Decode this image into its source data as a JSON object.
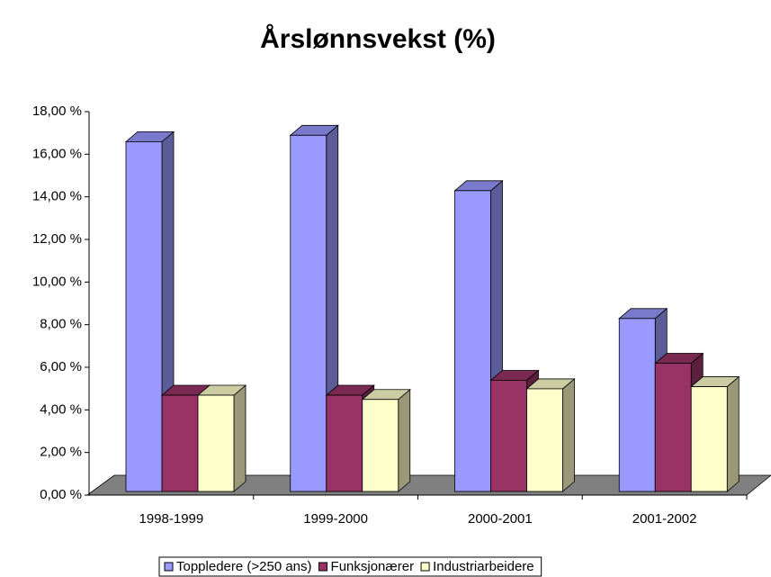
{
  "chart_data": {
    "type": "bar3d",
    "title": "Årslønnsvekst (%)",
    "categories": [
      "1998-1999",
      "1999-2000",
      "2000-2001",
      "2001-2002"
    ],
    "series": [
      {
        "name": "Toppledere (>250 ans)",
        "color": "#9999ff",
        "values": [
          16.8,
          17.1,
          14.5,
          8.5
        ]
      },
      {
        "name": "Funksjonærer",
        "color": "#993366",
        "values": [
          4.9,
          4.9,
          5.6,
          6.4
        ]
      },
      {
        "name": "Industriarbeidere",
        "color": "#ffffcc",
        "values": [
          4.9,
          4.7,
          5.2,
          5.3
        ]
      }
    ],
    "ylim": [
      0,
      18
    ],
    "yticks": [
      {
        "value": 0,
        "label": "0,00 %"
      },
      {
        "value": 2,
        "label": "2,00 %"
      },
      {
        "value": 4,
        "label": "4,00 %"
      },
      {
        "value": 6,
        "label": "6,00 %"
      },
      {
        "value": 8,
        "label": "8,00 %"
      },
      {
        "value": 10,
        "label": "10,00 %"
      },
      {
        "value": 12,
        "label": "12,00 %"
      },
      {
        "value": 14,
        "label": "14,00 %"
      },
      {
        "value": 16,
        "label": "16,00 %"
      },
      {
        "value": 18,
        "label": "18,00 %"
      }
    ],
    "legend": "bottom"
  }
}
